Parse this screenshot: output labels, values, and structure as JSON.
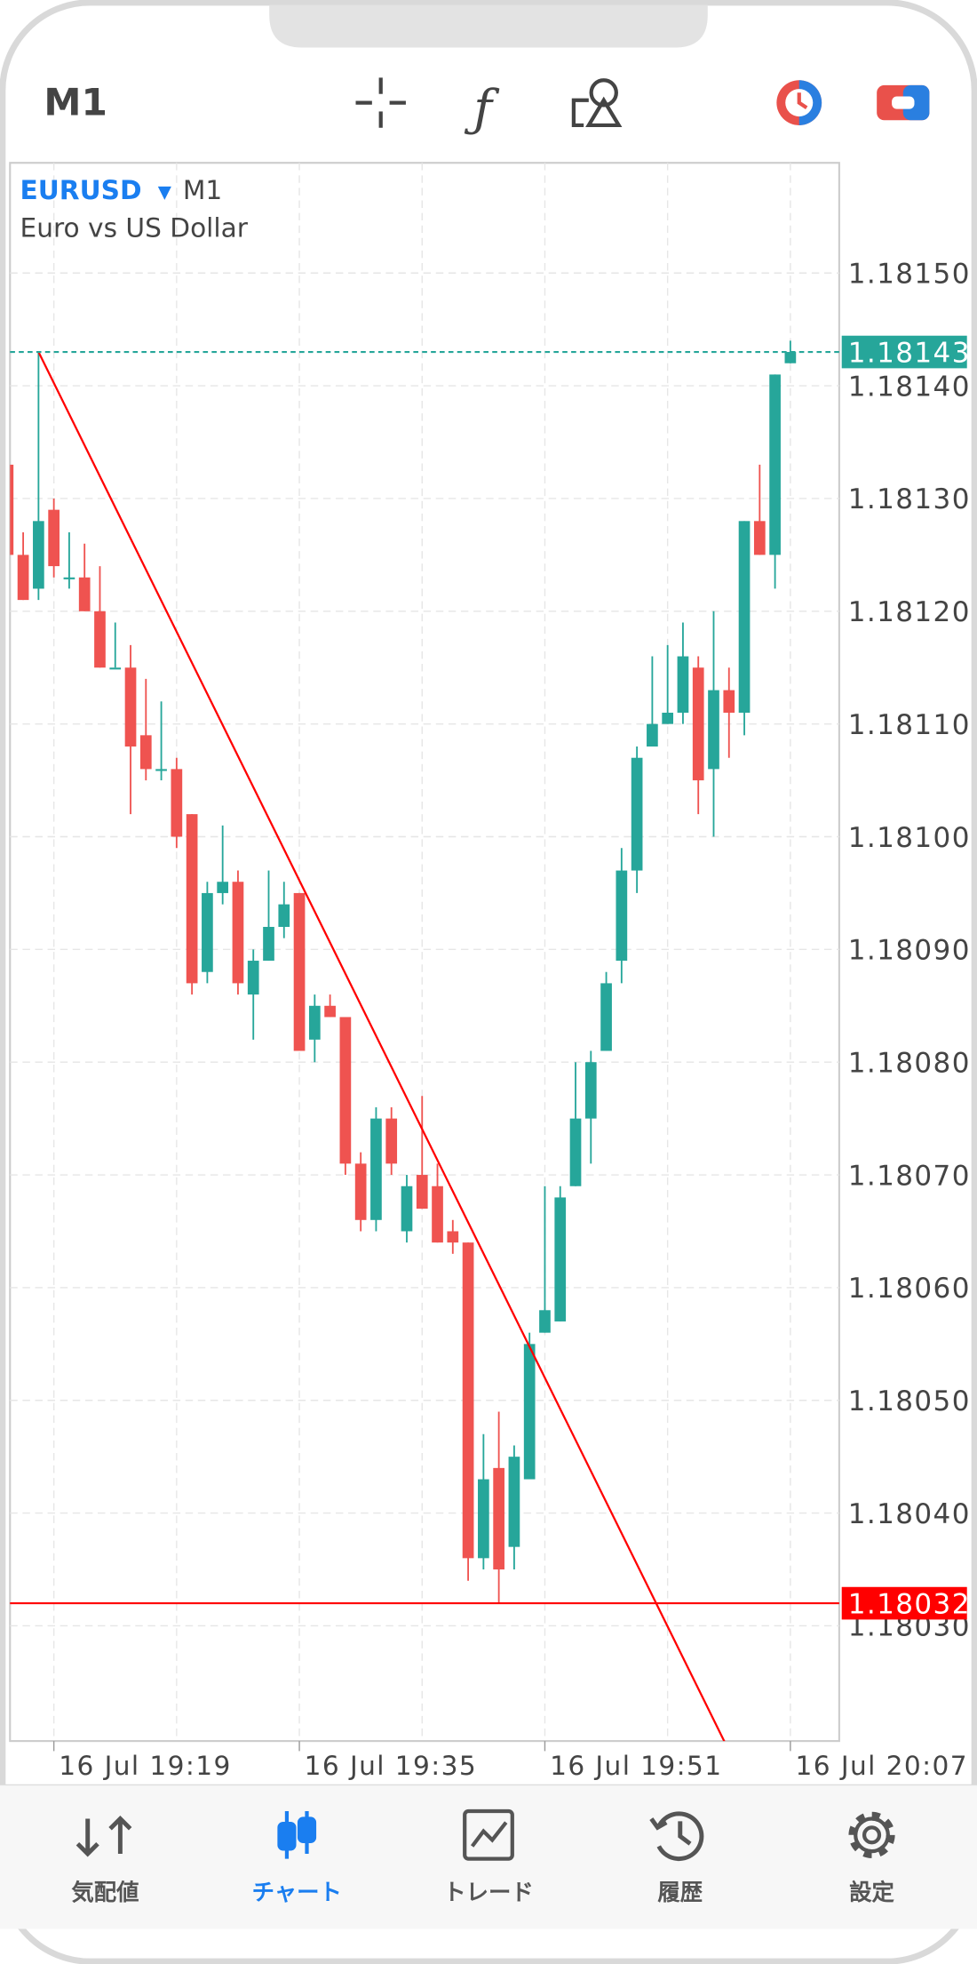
{
  "header": {
    "timeframe": "M1"
  },
  "tab_bar": {
    "tabs": [
      "気配値",
      "チャート",
      "トレード",
      "履歴",
      "設定"
    ],
    "active": 1
  },
  "chart_data": {
    "type": "candlestick",
    "symbol": "EURUSD",
    "timeframe": "M1",
    "subtitle": "Euro vs US Dollar",
    "categories": [
      null,
      null,
      null,
      "16 Jul 19:19",
      null,
      null,
      null,
      null,
      null,
      null,
      null,
      null,
      null,
      null,
      null,
      null,
      null,
      null,
      null,
      "16 Jul 19:35",
      null,
      null,
      null,
      null,
      null,
      null,
      null,
      null,
      null,
      null,
      null,
      null,
      null,
      null,
      null,
      "16 Jul 19:51",
      null,
      null,
      null,
      null,
      null,
      null,
      null,
      null,
      null,
      null,
      null,
      null,
      null,
      null,
      null,
      "16 Jul 20:07"
    ],
    "open": [
      1.18133,
      1.18125,
      1.18122,
      1.18129,
      1.18123,
      1.18123,
      1.1812,
      1.18115,
      1.18115,
      1.18109,
      1.18106,
      1.18106,
      1.18102,
      1.18088,
      1.18095,
      1.18096,
      1.18086,
      1.18089,
      1.18092,
      1.18095,
      1.18082,
      1.18085,
      1.18084,
      1.18071,
      1.18066,
      1.18075,
      1.18065,
      1.1807,
      1.18069,
      1.18065,
      1.18064,
      1.18036,
      1.18044,
      1.18037,
      1.18043,
      1.18056,
      1.18057,
      1.18069,
      1.18075,
      1.18081,
      1.18089,
      1.18097,
      1.18108,
      1.1811,
      1.18111,
      1.18115,
      1.18106,
      1.18113,
      1.18111,
      1.18128,
      1.18125,
      1.18142
    ],
    "high": [
      1.18133,
      1.18127,
      1.18143,
      1.1813,
      1.18127,
      1.18126,
      1.18124,
      1.18119,
      1.18117,
      1.18114,
      1.18112,
      1.18107,
      1.18102,
      1.18096,
      1.18101,
      1.18097,
      1.1809,
      1.18097,
      1.18096,
      1.18095,
      1.18086,
      1.18086,
      1.18084,
      1.18072,
      1.18076,
      1.18076,
      1.1807,
      1.18077,
      1.18071,
      1.18066,
      1.18064,
      1.18047,
      1.18049,
      1.18046,
      1.18056,
      1.18069,
      1.18069,
      1.1808,
      1.18081,
      1.18088,
      1.18099,
      1.18108,
      1.18116,
      1.18117,
      1.18119,
      1.18116,
      1.1812,
      1.18115,
      1.18128,
      1.18133,
      1.18141,
      1.18144
    ],
    "low": [
      1.18125,
      1.18121,
      1.18121,
      1.18123,
      1.18122,
      1.1812,
      1.18115,
      1.18115,
      1.18102,
      1.18105,
      1.18105,
      1.18099,
      1.18086,
      1.18087,
      1.18094,
      1.18086,
      1.18082,
      1.18089,
      1.18091,
      1.18081,
      1.1808,
      1.18084,
      1.1807,
      1.18065,
      1.18065,
      1.1807,
      1.18064,
      1.18067,
      1.18064,
      1.18063,
      1.18034,
      1.18035,
      1.18032,
      1.18035,
      1.18043,
      1.18056,
      1.18057,
      1.18069,
      1.18071,
      1.18081,
      1.18087,
      1.18095,
      1.18108,
      1.1811,
      1.1811,
      1.18102,
      1.181,
      1.18107,
      1.18109,
      1.18125,
      1.18122,
      1.18142
    ],
    "close": [
      1.18125,
      1.18121,
      1.18128,
      1.18124,
      1.18123,
      1.1812,
      1.18115,
      1.18115,
      1.18108,
      1.18106,
      1.18106,
      1.181,
      1.18087,
      1.18095,
      1.18096,
      1.18087,
      1.18089,
      1.18092,
      1.18094,
      1.18081,
      1.18085,
      1.18084,
      1.18071,
      1.18066,
      1.18075,
      1.18071,
      1.18069,
      1.18067,
      1.18064,
      1.18064,
      1.18036,
      1.18043,
      1.18035,
      1.18045,
      1.18055,
      1.18058,
      1.18068,
      1.18075,
      1.1808,
      1.18087,
      1.18097,
      1.18107,
      1.1811,
      1.18111,
      1.18116,
      1.18105,
      1.18113,
      1.18111,
      1.18128,
      1.18125,
      1.18141,
      1.18143
    ],
    "up_color": "#26a69a",
    "down_color": "#ef5350",
    "ylim": [
      1.1802,
      1.1816
    ],
    "yticks": [
      {
        "value": 1.1803,
        "label": "1.18030"
      },
      {
        "value": 1.1804,
        "label": "1.18040"
      },
      {
        "value": 1.1805,
        "label": "1.18050"
      },
      {
        "value": 1.1806,
        "label": "1.18060"
      },
      {
        "value": 1.1807,
        "label": "1.18070"
      },
      {
        "value": 1.1808,
        "label": "1.18080"
      },
      {
        "value": 1.1809,
        "label": "1.18090"
      },
      {
        "value": 1.181,
        "label": "1.18100"
      },
      {
        "value": 1.1811,
        "label": "1.18110"
      },
      {
        "value": 1.1812,
        "label": "1.18120"
      },
      {
        "value": 1.1813,
        "label": "1.18130"
      },
      {
        "value": 1.1814,
        "label": "1.18140"
      },
      {
        "value": 1.1815,
        "label": "1.18150"
      }
    ],
    "grid": true,
    "price_lines": [
      {
        "value": 1.18143,
        "color": "#26a69a",
        "style": "dashed"
      },
      {
        "value": 1.18032,
        "color": "#ff0000",
        "style": "solid"
      }
    ],
    "trendline": {
      "color": "#ff0000",
      "points": [
        {
          "x": 2,
          "y": 1.18143
        },
        {
          "x": 35,
          "y": 1.18052
        }
      ]
    }
  }
}
